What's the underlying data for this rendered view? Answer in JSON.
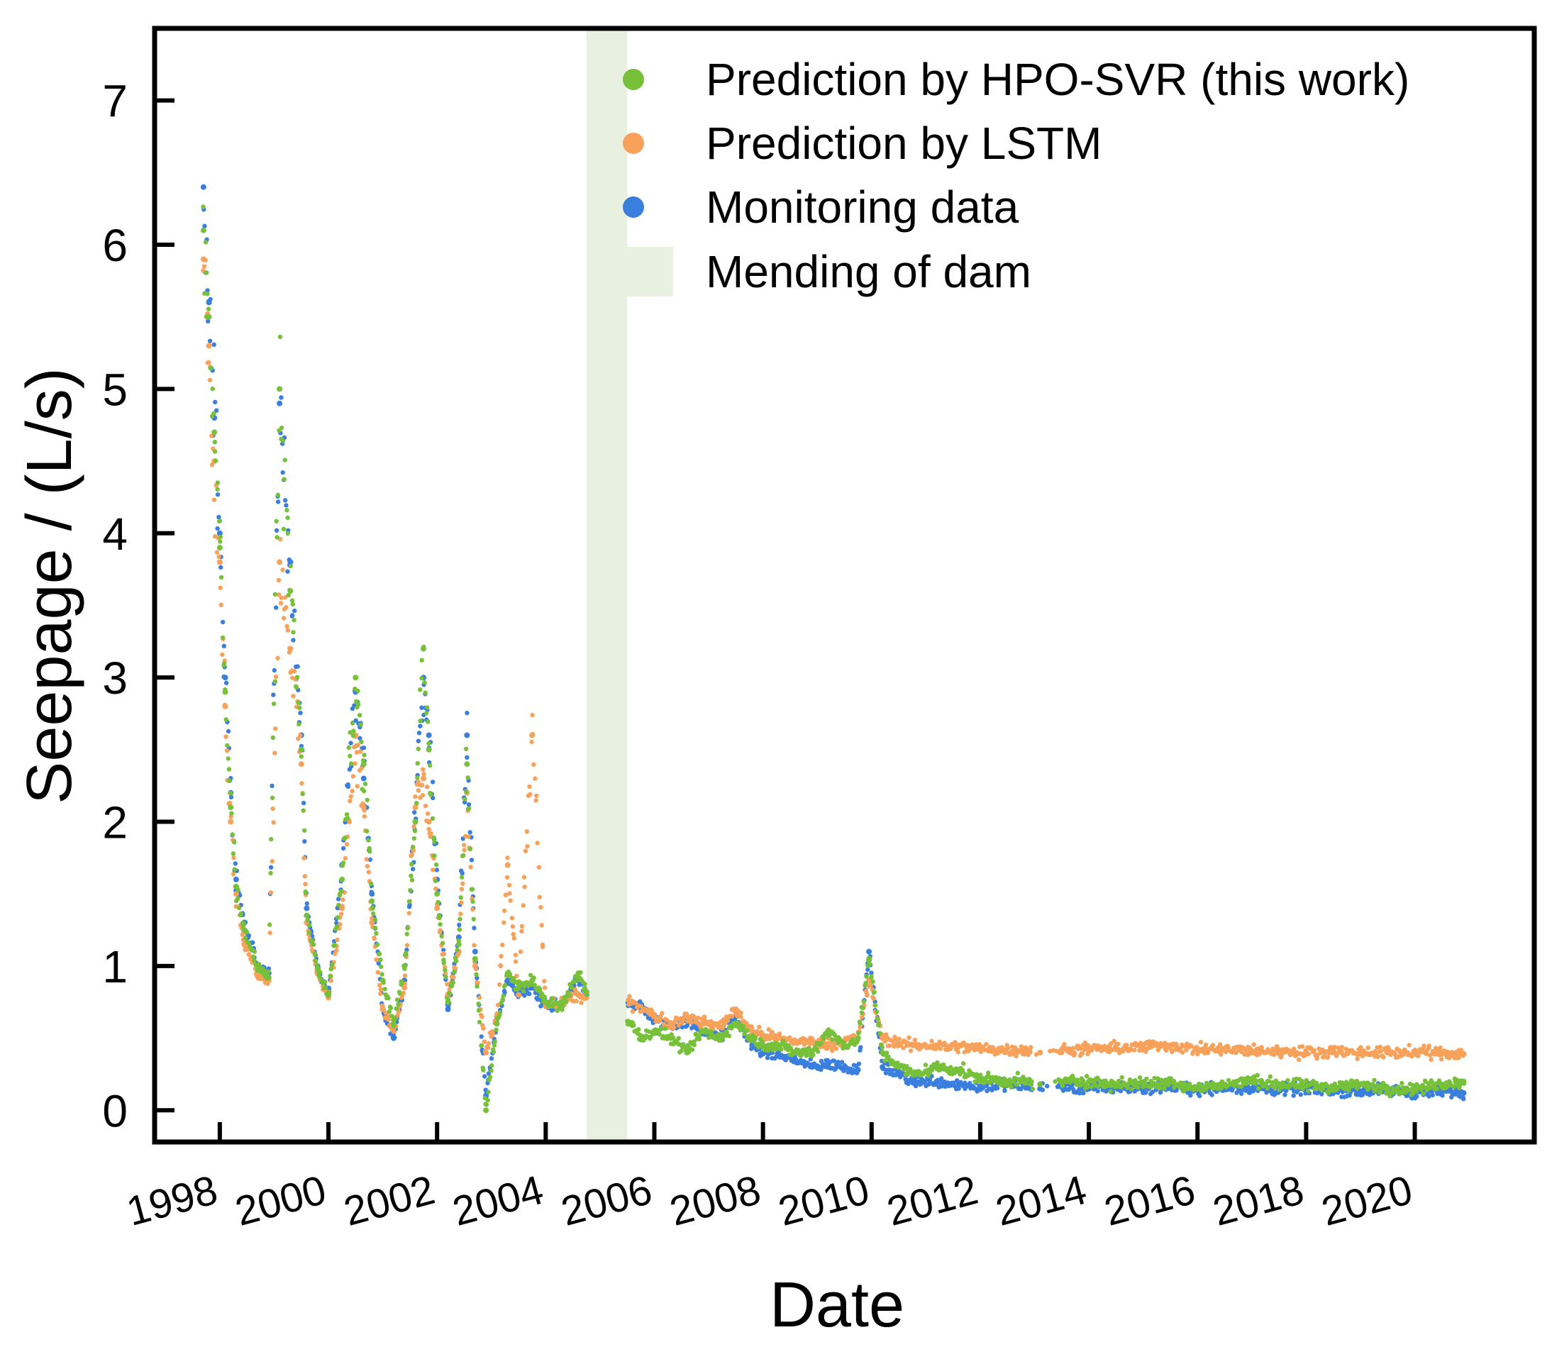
{
  "chart_data": {
    "type": "scatter",
    "xlabel": "Date",
    "ylabel": "Seepage / (L/s)",
    "xlim": [
      1996.8,
      2022.2
    ],
    "ylim": [
      -0.22,
      7.5
    ],
    "xticks": [
      1998,
      2000,
      2002,
      2004,
      2006,
      2008,
      2010,
      2012,
      2014,
      2016,
      2018,
      2020
    ],
    "xtick_labels": [
      "1998",
      "2000",
      "2002",
      "2004",
      "2006",
      "2008",
      "2010",
      "2012",
      "2014",
      "2016",
      "2018",
      "2020"
    ],
    "yticks": [
      0,
      1,
      2,
      3,
      4,
      5,
      6,
      7
    ],
    "ytick_labels": [
      "0",
      "1",
      "2",
      "3",
      "4",
      "5",
      "6",
      "7"
    ],
    "shaded_region": {
      "label": "Mending of dam",
      "x_start": 2004.75,
      "x_end": 2005.5,
      "color": "#e8f0df"
    },
    "legend_position": "top-right",
    "legend": [
      {
        "label": "Prediction by HPO-SVR (this work)",
        "kind": "marker",
        "color": "#77c13a"
      },
      {
        "label": "Prediction by LSTM",
        "kind": "marker",
        "color": "#f7a15a"
      },
      {
        "label": "Monitoring data",
        "kind": "marker",
        "color": "#3a7fde"
      },
      {
        "label": "Mending of dam",
        "kind": "patch",
        "color": "#e8f0df"
      }
    ],
    "series": [
      {
        "name": "Monitoring data",
        "color": "#3a7fde",
        "x": [
          1997.7,
          1997.8,
          1997.9,
          1998.0,
          1998.1,
          1998.2,
          1998.3,
          1998.45,
          1998.7,
          1998.9,
          1999.1,
          1999.3,
          1999.5,
          1999.6,
          1999.8,
          2000.0,
          2000.25,
          2000.5,
          2000.65,
          2000.8,
          2001.0,
          2001.2,
          2001.4,
          2001.6,
          2001.75,
          2001.85,
          2002.0,
          2002.2,
          2002.4,
          2002.55,
          2002.7,
          2002.9,
          2003.1,
          2003.3,
          2003.5,
          2003.75,
          2004.0,
          2004.3,
          2004.6,
          2004.75,
          2005.55,
          2005.8,
          2006.0,
          2006.3,
          2006.6,
          2006.9,
          2007.2,
          2007.5,
          2007.8,
          2008.0,
          2008.3,
          2008.6,
          2008.9,
          2009.2,
          2009.5,
          2009.75,
          2009.95,
          2010.2,
          2010.5,
          2010.8,
          2011.2,
          2011.6,
          2012.0,
          2012.4,
          2012.8,
          2013.1,
          2013.5,
          2014.0,
          2014.5,
          2015.0,
          2015.5,
          2016.0,
          2016.5,
          2017.0,
          2017.5,
          2018.0,
          2018.5,
          2019.0,
          2019.5,
          2020.0,
          2020.5,
          2020.9
        ],
        "y": [
          6.4,
          5.6,
          4.8,
          4.0,
          3.0,
          2.2,
          1.6,
          1.3,
          1.0,
          0.95,
          4.9,
          3.8,
          2.6,
          1.4,
          1.0,
          0.8,
          1.7,
          2.9,
          2.3,
          1.5,
          0.7,
          0.5,
          0.9,
          2.0,
          3.0,
          2.6,
          1.6,
          0.7,
          1.2,
          2.6,
          1.1,
          0.1,
          0.6,
          0.9,
          0.8,
          0.85,
          0.72,
          0.75,
          0.9,
          0.8,
          0.75,
          0.7,
          0.62,
          0.58,
          0.62,
          0.55,
          0.5,
          0.65,
          0.45,
          0.4,
          0.38,
          0.35,
          0.3,
          0.32,
          0.3,
          0.28,
          1.1,
          0.3,
          0.25,
          0.2,
          0.2,
          0.18,
          0.16,
          0.18,
          0.17,
          0.15,
          0.16,
          0.15,
          0.16,
          0.15,
          0.17,
          0.14,
          0.16,
          0.15,
          0.14,
          0.15,
          0.14,
          0.13,
          0.14,
          0.12,
          0.13,
          0.12
        ]
      },
      {
        "name": "Prediction by LSTM",
        "color": "#f7a15a",
        "x": [
          1997.7,
          1997.8,
          1997.9,
          1998.0,
          1998.1,
          1998.2,
          1998.3,
          1998.45,
          1998.7,
          1998.9,
          1999.1,
          1999.3,
          1999.5,
          1999.6,
          1999.8,
          2000.0,
          2000.25,
          2000.5,
          2000.65,
          2000.8,
          2001.0,
          2001.2,
          2001.4,
          2001.6,
          2001.75,
          2001.85,
          2002.0,
          2002.2,
          2002.4,
          2002.55,
          2002.7,
          2002.9,
          2003.1,
          2003.3,
          2003.5,
          2003.75,
          2004.0,
          2004.3,
          2004.6,
          2004.75,
          2005.55,
          2005.8,
          2006.0,
          2006.3,
          2006.6,
          2006.9,
          2007.2,
          2007.5,
          2007.8,
          2008.0,
          2008.3,
          2008.6,
          2008.9,
          2009.2,
          2009.5,
          2009.75,
          2009.95,
          2010.2,
          2010.5,
          2010.8,
          2011.2,
          2011.6,
          2012.0,
          2012.4,
          2012.8,
          2013.1,
          2013.5,
          2014.0,
          2014.5,
          2015.0,
          2015.5,
          2016.0,
          2016.5,
          2017.0,
          2017.5,
          2018.0,
          2018.5,
          2019.0,
          2019.5,
          2020.0,
          2020.5,
          2020.9
        ],
        "y": [
          5.9,
          5.3,
          4.5,
          3.8,
          2.8,
          2.0,
          1.5,
          1.15,
          0.95,
          0.9,
          3.8,
          3.2,
          2.4,
          1.3,
          0.95,
          0.78,
          1.4,
          2.6,
          2.1,
          1.3,
          0.7,
          0.55,
          0.85,
          2.1,
          2.3,
          2.0,
          1.4,
          0.8,
          1.1,
          2.2,
          1.0,
          0.4,
          0.65,
          1.7,
          0.8,
          2.6,
          0.72,
          0.74,
          0.8,
          0.78,
          0.75,
          0.7,
          0.65,
          0.6,
          0.65,
          0.6,
          0.58,
          0.7,
          0.55,
          0.52,
          0.5,
          0.48,
          0.47,
          0.46,
          0.48,
          0.5,
          0.9,
          0.5,
          0.46,
          0.45,
          0.45,
          0.44,
          0.43,
          0.42,
          0.42,
          0.4,
          0.42,
          0.42,
          0.43,
          0.44,
          0.45,
          0.42,
          0.42,
          0.41,
          0.41,
          0.4,
          0.41,
          0.4,
          0.4,
          0.4,
          0.4,
          0.39
        ]
      },
      {
        "name": "Prediction by HPO-SVR (this work)",
        "color": "#77c13a",
        "x": [
          1997.7,
          1997.8,
          1997.9,
          1998.0,
          1998.1,
          1998.2,
          1998.3,
          1998.45,
          1998.7,
          1998.9,
          1999.1,
          1999.3,
          1999.5,
          1999.6,
          1999.8,
          2000.0,
          2000.25,
          2000.5,
          2000.65,
          2000.8,
          2001.0,
          2001.2,
          2001.4,
          2001.6,
          2001.75,
          2001.85,
          2002.0,
          2002.2,
          2002.4,
          2002.55,
          2002.7,
          2002.9,
          2003.1,
          2003.3,
          2003.5,
          2003.75,
          2004.0,
          2004.3,
          2004.6,
          2004.75,
          2005.55,
          2005.8,
          2006.0,
          2006.3,
          2006.6,
          2006.9,
          2007.2,
          2007.5,
          2007.8,
          2008.0,
          2008.3,
          2008.6,
          2008.9,
          2009.2,
          2009.5,
          2009.75,
          2009.95,
          2010.2,
          2010.5,
          2010.8,
          2011.2,
          2011.6,
          2012.0,
          2012.4,
          2012.8,
          2013.1,
          2013.5,
          2014.0,
          2014.5,
          2015.0,
          2015.5,
          2016.0,
          2016.5,
          2017.0,
          2017.5,
          2018.0,
          2018.5,
          2019.0,
          2019.5,
          2020.0,
          2020.5,
          2020.9
        ],
        "y": [
          6.1,
          5.5,
          4.7,
          3.9,
          2.9,
          2.1,
          1.55,
          1.25,
          1.0,
          0.92,
          5.0,
          3.6,
          2.5,
          1.35,
          0.98,
          0.8,
          1.6,
          3.0,
          2.4,
          1.45,
          0.9,
          0.6,
          1.0,
          2.0,
          3.2,
          2.5,
          1.5,
          0.75,
          1.15,
          2.4,
          1.05,
          0.0,
          0.6,
          0.95,
          0.85,
          0.9,
          0.75,
          0.72,
          0.95,
          0.82,
          0.6,
          0.5,
          0.55,
          0.5,
          0.4,
          0.55,
          0.5,
          0.6,
          0.5,
          0.45,
          0.45,
          0.4,
          0.4,
          0.55,
          0.45,
          0.5,
          1.05,
          0.4,
          0.3,
          0.25,
          0.3,
          0.28,
          0.22,
          0.2,
          0.2,
          0.18,
          0.2,
          0.2,
          0.18,
          0.18,
          0.2,
          0.15,
          0.18,
          0.2,
          0.18,
          0.17,
          0.16,
          0.18,
          0.15,
          0.15,
          0.18,
          0.2
        ]
      }
    ]
  }
}
